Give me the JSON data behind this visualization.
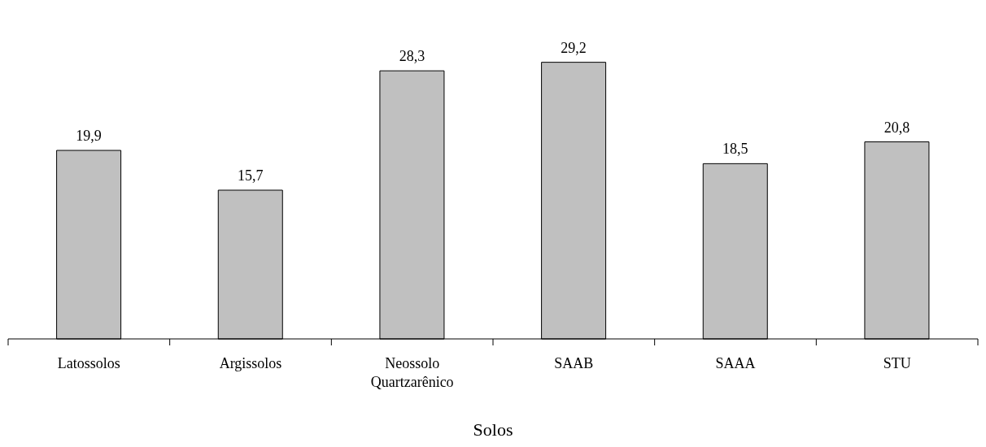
{
  "chart_data": {
    "type": "bar",
    "xlabel": "Solos",
    "categories": [
      "Latossolos",
      "Argissolos",
      "Neossolo Quartzarênico",
      "SAAB",
      "SAAA",
      "STU"
    ],
    "values": [
      19.9,
      15.7,
      28.3,
      29.2,
      18.5,
      20.8
    ],
    "value_labels": [
      "19,9",
      "15,7",
      "28,3",
      "29,2",
      "18,5",
      "20,8"
    ],
    "color": "#c0c0c0",
    "grid": false,
    "legend": false
  }
}
